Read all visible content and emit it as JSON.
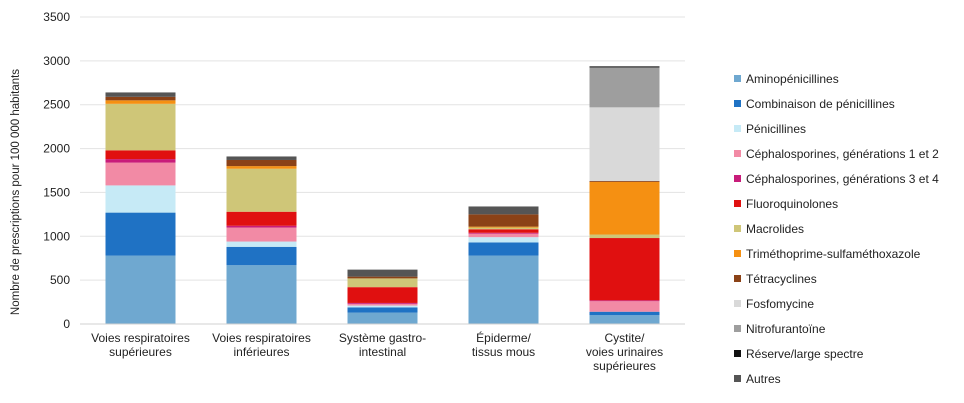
{
  "chart_data": {
    "type": "bar",
    "stacked": true,
    "title": "",
    "xlabel": "",
    "ylabel": "Nombre de prescriptions pour 100 000 habitants",
    "ylim": [
      0,
      3500
    ],
    "yticks": [
      "0",
      "500",
      "1000",
      "1500",
      "2000",
      "2500",
      "3000",
      "3500"
    ],
    "grid": true,
    "legend_position": "right",
    "categories": [
      [
        "Voies respiratoires",
        "supérieures"
      ],
      [
        "Voies respiratoires",
        "inférieures"
      ],
      [
        "Système gastro-",
        "intestinal"
      ],
      [
        "Épiderme/",
        "tissus mous"
      ],
      [
        "Cystite/",
        "voies urinaires",
        "supérieures"
      ]
    ],
    "series": [
      {
        "name": "Aminopénicillines",
        "color": "#6fa8d0",
        "values": [
          780,
          670,
          130,
          780,
          100
        ]
      },
      {
        "name": "Combinaison de pénicillines",
        "color": "#1f72c4",
        "values": [
          490,
          210,
          60,
          150,
          40
        ]
      },
      {
        "name": "Pénicillines",
        "color": "#c6eaf6",
        "values": [
          310,
          60,
          20,
          60,
          0
        ]
      },
      {
        "name": "Céphalosporines, générations 1 et 2",
        "color": "#f28aa5",
        "values": [
          260,
          160,
          20,
          40,
          120
        ]
      },
      {
        "name": "Céphalosporines, générations 3 et 4",
        "color": "#c81c7a",
        "values": [
          40,
          20,
          10,
          10,
          10
        ]
      },
      {
        "name": "Fluoroquinolones",
        "color": "#e01010",
        "values": [
          100,
          160,
          180,
          40,
          710
        ]
      },
      {
        "name": "Macrolides",
        "color": "#cfc678",
        "values": [
          530,
          490,
          100,
          20,
          40
        ]
      },
      {
        "name": "Triméthoprime-sulfaméthoxazole",
        "color": "#f59012",
        "values": [
          40,
          30,
          0,
          10,
          600
        ]
      },
      {
        "name": "Tétracyclines",
        "color": "#8b4217",
        "values": [
          40,
          70,
          20,
          140,
          10
        ]
      },
      {
        "name": "Fosfomycine",
        "color": "#d9d9d9",
        "values": [
          0,
          0,
          0,
          0,
          840
        ]
      },
      {
        "name": "Nitrofurantoïne",
        "color": "#9e9e9e",
        "values": [
          0,
          0,
          0,
          0,
          450
        ]
      },
      {
        "name": "Réserve/large spectre",
        "color": "#111111",
        "values": [
          0,
          0,
          0,
          0,
          0
        ]
      },
      {
        "name": "Autres",
        "color": "#555555",
        "values": [
          50,
          40,
          80,
          90,
          20
        ]
      }
    ]
  }
}
